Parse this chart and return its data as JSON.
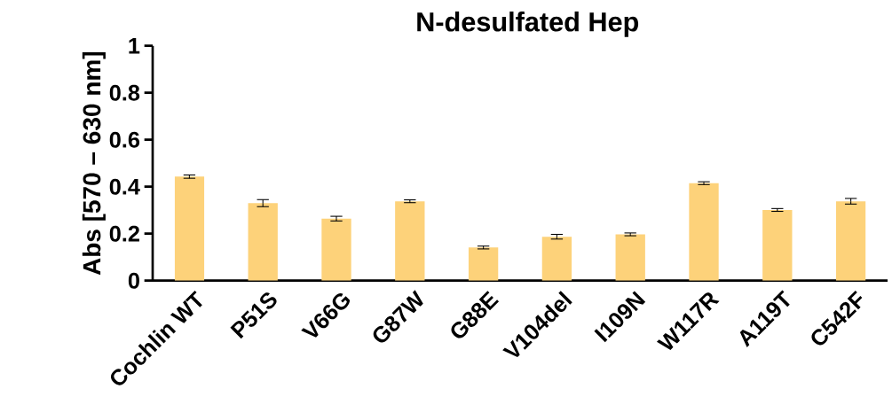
{
  "chart_data": {
    "type": "bar",
    "title": "N-desulfated Hep",
    "ylabel": "Abs [570 – 630 nm]",
    "categories": [
      "Cochlin WT",
      "P51S",
      "V66G",
      "G87W",
      "G88E",
      "V104del",
      "I109N",
      "W117R",
      "A119T",
      "C542F"
    ],
    "values": [
      0.443,
      0.33,
      0.264,
      0.338,
      0.141,
      0.187,
      0.197,
      0.415,
      0.301,
      0.338
    ],
    "errors": [
      0.007,
      0.015,
      0.01,
      0.006,
      0.006,
      0.01,
      0.006,
      0.006,
      0.006,
      0.012
    ],
    "color": "#fdd27a",
    "ylim": [
      0,
      1
    ],
    "yticks": [
      0,
      0.2,
      0.4,
      0.6,
      0.8,
      1
    ]
  }
}
